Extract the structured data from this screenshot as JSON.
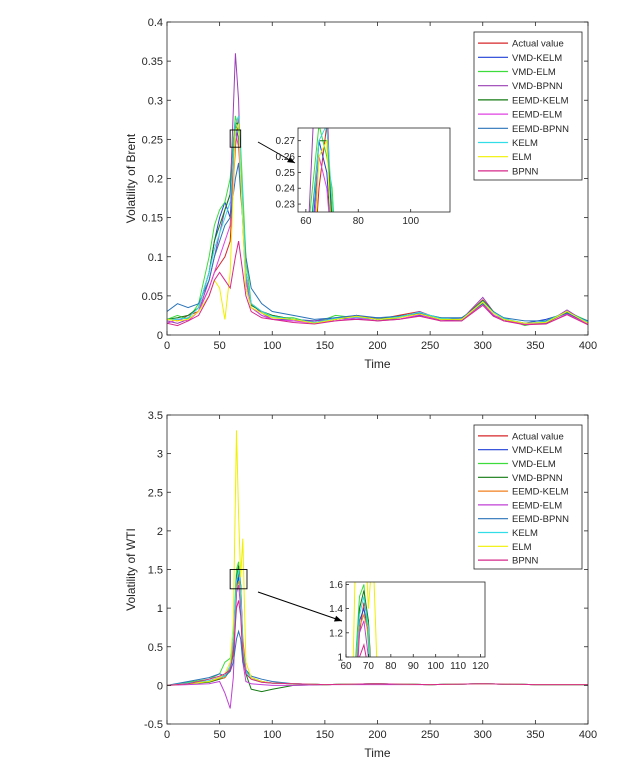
{
  "chart_data": [
    {
      "type": "line",
      "title": "",
      "xlabel": "Time",
      "ylabel": "Volatility of Brent",
      "xlim": [
        0,
        400
      ],
      "ylim": [
        0,
        0.4
      ],
      "xticks": [
        "0",
        "50",
        "100",
        "150",
        "200",
        "250",
        "300",
        "350",
        "400"
      ],
      "yticks": [
        "0",
        "0.05",
        "0.1",
        "0.15",
        "0.2",
        "0.25",
        "0.3",
        "0.35",
        "0.4"
      ],
      "grid": false,
      "legend_position": "top-right",
      "x": [
        0,
        10,
        20,
        30,
        40,
        45,
        50,
        55,
        60,
        65,
        68,
        70,
        75,
        80,
        90,
        100,
        120,
        140,
        160,
        180,
        200,
        220,
        240,
        260,
        280,
        300,
        310,
        320,
        340,
        360,
        380,
        400
      ],
      "series": [
        {
          "name": "Actual value",
          "color": "#d62728",
          "values": [
            0.02,
            0.018,
            0.025,
            0.03,
            0.06,
            0.08,
            0.09,
            0.1,
            0.12,
            0.24,
            0.28,
            0.22,
            0.08,
            0.04,
            0.03,
            0.025,
            0.02,
            0.015,
            0.02,
            0.025,
            0.02,
            0.025,
            0.03,
            0.02,
            0.02,
            0.045,
            0.03,
            0.02,
            0.015,
            0.015,
            0.03,
            0.015
          ]
        },
        {
          "name": "VMD-KELM",
          "color": "#1f3fd6",
          "values": [
            0.015,
            0.02,
            0.022,
            0.035,
            0.08,
            0.12,
            0.15,
            0.17,
            0.15,
            0.27,
            0.25,
            0.2,
            0.06,
            0.035,
            0.025,
            0.02,
            0.02,
            0.018,
            0.022,
            0.02,
            0.022,
            0.02,
            0.025,
            0.02,
            0.022,
            0.04,
            0.025,
            0.02,
            0.015,
            0.02,
            0.028,
            0.015
          ]
        },
        {
          "name": "VMD-ELM",
          "color": "#3ddc3d",
          "values": [
            0.02,
            0.025,
            0.02,
            0.04,
            0.1,
            0.14,
            0.16,
            0.17,
            0.2,
            0.28,
            0.26,
            0.24,
            0.1,
            0.04,
            0.03,
            0.022,
            0.022,
            0.015,
            0.025,
            0.022,
            0.018,
            0.022,
            0.028,
            0.022,
            0.018,
            0.042,
            0.028,
            0.022,
            0.012,
            0.018,
            0.03,
            0.018
          ]
        },
        {
          "name": "VMD-BPNN",
          "color": "#9a3fb5",
          "values": [
            0.018,
            0.015,
            0.02,
            0.03,
            0.07,
            0.1,
            0.13,
            0.16,
            0.18,
            0.36,
            0.3,
            0.2,
            0.07,
            0.04,
            0.028,
            0.02,
            0.018,
            0.018,
            0.02,
            0.025,
            0.02,
            0.022,
            0.03,
            0.018,
            0.02,
            0.048,
            0.03,
            0.018,
            0.015,
            0.015,
            0.032,
            0.015
          ]
        },
        {
          "name": "EEMD-KELM",
          "color": "#137a13",
          "values": [
            0.02,
            0.022,
            0.025,
            0.035,
            0.08,
            0.12,
            0.14,
            0.16,
            0.18,
            0.27,
            0.27,
            0.22,
            0.08,
            0.038,
            0.03,
            0.025,
            0.02,
            0.016,
            0.02,
            0.024,
            0.02,
            0.024,
            0.028,
            0.02,
            0.02,
            0.044,
            0.03,
            0.02,
            0.015,
            0.016,
            0.029,
            0.016
          ]
        },
        {
          "name": "EEMD-ELM",
          "color": "#e040e0",
          "values": [
            0.015,
            0.02,
            0.018,
            0.03,
            0.06,
            0.08,
            0.1,
            0.12,
            0.14,
            0.26,
            0.24,
            0.2,
            0.07,
            0.035,
            0.025,
            0.02,
            0.018,
            0.015,
            0.018,
            0.022,
            0.018,
            0.02,
            0.026,
            0.018,
            0.018,
            0.04,
            0.026,
            0.018,
            0.014,
            0.014,
            0.027,
            0.014
          ]
        },
        {
          "name": "EEMD-BPNN",
          "color": "#2a73b8",
          "values": [
            0.03,
            0.04,
            0.035,
            0.04,
            0.07,
            0.1,
            0.12,
            0.14,
            0.15,
            0.2,
            0.22,
            0.18,
            0.1,
            0.06,
            0.04,
            0.03,
            0.025,
            0.02,
            0.022,
            0.025,
            0.022,
            0.024,
            0.028,
            0.022,
            0.022,
            0.04,
            0.03,
            0.022,
            0.018,
            0.018,
            0.028,
            0.018
          ]
        },
        {
          "name": "KELM",
          "color": "#33dde8",
          "values": [
            0.02,
            0.02,
            0.022,
            0.035,
            0.08,
            0.11,
            0.13,
            0.15,
            0.17,
            0.27,
            0.28,
            0.23,
            0.08,
            0.04,
            0.03,
            0.024,
            0.02,
            0.016,
            0.021,
            0.023,
            0.02,
            0.023,
            0.029,
            0.021,
            0.02,
            0.043,
            0.029,
            0.021,
            0.015,
            0.017,
            0.03,
            0.016
          ]
        },
        {
          "name": "ELM",
          "color": "#f0f000",
          "values": [
            0.02,
            0.018,
            0.02,
            0.03,
            0.05,
            0.07,
            0.06,
            0.02,
            0.08,
            0.26,
            0.27,
            0.2,
            0.06,
            0.035,
            0.028,
            0.022,
            0.02,
            0.015,
            0.02,
            0.024,
            0.02,
            0.022,
            0.027,
            0.02,
            0.02,
            0.042,
            0.028,
            0.02,
            0.015,
            0.016,
            0.03,
            0.015
          ]
        },
        {
          "name": "BPNN",
          "color": "#d6288a",
          "values": [
            0.015,
            0.012,
            0.018,
            0.025,
            0.05,
            0.07,
            0.08,
            0.07,
            0.06,
            0.1,
            0.12,
            0.1,
            0.05,
            0.03,
            0.022,
            0.02,
            0.016,
            0.014,
            0.018,
            0.02,
            0.018,
            0.02,
            0.024,
            0.018,
            0.018,
            0.038,
            0.024,
            0.018,
            0.013,
            0.014,
            0.026,
            0.013
          ]
        }
      ],
      "inset": {
        "xlim": [
          57,
          115
        ],
        "ylim": [
          0.225,
          0.278
        ],
        "xticks": [
          "60",
          "80",
          "100"
        ],
        "yticks": [
          "0.23",
          "0.24",
          "0.25",
          "0.26",
          "0.27"
        ]
      }
    },
    {
      "type": "line",
      "title": "",
      "xlabel": "Time",
      "ylabel": "Volatility of WTI",
      "xlim": [
        0,
        400
      ],
      "ylim": [
        -0.5,
        3.5
      ],
      "xticks": [
        "0",
        "50",
        "100",
        "150",
        "200",
        "250",
        "300",
        "350",
        "400"
      ],
      "yticks": [
        "-0.5",
        "0",
        "0.5",
        "1",
        "1.5",
        "2",
        "2.5",
        "3",
        "3.5"
      ],
      "grid": false,
      "legend_position": "top-right",
      "x": [
        0,
        20,
        40,
        50,
        55,
        60,
        63,
        66,
        68,
        70,
        72,
        75,
        80,
        90,
        100,
        120,
        150,
        200,
        250,
        300,
        350,
        400
      ],
      "series": [
        {
          "name": "Actual value",
          "color": "#d62728",
          "values": [
            0,
            0.02,
            0.05,
            0.08,
            0.1,
            0.2,
            0.5,
            1.2,
            1.45,
            1.3,
            0.6,
            0.2,
            0.1,
            0.05,
            0.03,
            0.02,
            0.01,
            0.02,
            0.01,
            0.02,
            0.01,
            0.01
          ]
        },
        {
          "name": "VMD-KELM",
          "color": "#1f3fd6",
          "values": [
            0,
            0.03,
            0.06,
            0.1,
            0.12,
            0.25,
            0.6,
            1.3,
            1.4,
            1.2,
            0.5,
            0.18,
            0.1,
            0.05,
            0.03,
            0.02,
            0.01,
            0.02,
            0.01,
            0.02,
            0.01,
            0.01
          ]
        },
        {
          "name": "VMD-ELM",
          "color": "#3ddc3d",
          "values": [
            0,
            0.04,
            0.08,
            0.15,
            0.3,
            0.35,
            0.6,
            1.5,
            1.6,
            1.1,
            0.4,
            0.15,
            0.08,
            0.04,
            0.03,
            0.02,
            0.01,
            0.02,
            0.01,
            0.02,
            0.01,
            0.01
          ]
        },
        {
          "name": "VMD-BPNN",
          "color": "#137a13",
          "values": [
            0,
            0.02,
            0.04,
            0.08,
            0.1,
            0.2,
            0.5,
            1.4,
            1.55,
            1.3,
            0.5,
            0.15,
            -0.05,
            -0.08,
            -0.05,
            0,
            0.01,
            0.02,
            0.01,
            0.02,
            0.01,
            0.01
          ]
        },
        {
          "name": "EEMD-KELM",
          "color": "#f07f1f",
          "values": [
            0,
            0.02,
            0.05,
            0.09,
            0.1,
            0.22,
            0.55,
            1.25,
            1.35,
            1.2,
            0.55,
            0.2,
            0.1,
            0.05,
            0.03,
            0.02,
            0.01,
            0.02,
            0.01,
            0.02,
            0.01,
            0.01
          ]
        },
        {
          "name": "EEMD-ELM",
          "color": "#c040d6",
          "values": [
            0,
            0.01,
            0.02,
            0.05,
            -0.1,
            -0.3,
            0.1,
            1.2,
            1.3,
            1.0,
            0.3,
            0.05,
            0.02,
            0.01,
            0,
            0,
            0.01,
            0.01,
            0.01,
            0.02,
            0.01,
            0.01
          ]
        },
        {
          "name": "EEMD-BPNN",
          "color": "#2a73b8",
          "values": [
            0,
            0.05,
            0.1,
            0.15,
            0.12,
            0.18,
            0.3,
            0.6,
            0.7,
            0.6,
            0.3,
            0.2,
            0.12,
            0.08,
            0.05,
            0.02,
            0.01,
            0.02,
            0.01,
            0.02,
            0.01,
            0.01
          ]
        },
        {
          "name": "KELM",
          "color": "#33dde8",
          "values": [
            0,
            0.03,
            0.06,
            0.1,
            0.12,
            0.25,
            0.6,
            1.35,
            1.5,
            1.25,
            0.5,
            0.18,
            0.1,
            0.05,
            0.03,
            0.02,
            0.01,
            0.02,
            0.01,
            0.02,
            0.01,
            0.01
          ]
        },
        {
          "name": "ELM",
          "color": "#f0f000",
          "values": [
            0,
            0.02,
            0.05,
            0.1,
            0.15,
            0.3,
            0.8,
            3.3,
            2.2,
            1.4,
            1.9,
            0.3,
            0.1,
            0.05,
            0.03,
            0.02,
            0.01,
            0.02,
            0.01,
            0.02,
            0.01,
            0.01
          ]
        },
        {
          "name": "BPNN",
          "color": "#d6288a",
          "values": [
            0,
            0.02,
            0.08,
            0.12,
            0.15,
            0.2,
            0.4,
            1.0,
            1.1,
            0.9,
            0.4,
            0.15,
            0.08,
            0.04,
            0.03,
            0.02,
            0.01,
            0.02,
            0.01,
            0.02,
            0.01,
            0.01
          ]
        }
      ],
      "inset": {
        "xlim": [
          60,
          122
        ],
        "ylim": [
          1.0,
          1.62
        ],
        "xticks": [
          "60",
          "70",
          "80",
          "90",
          "100",
          "110",
          "120"
        ],
        "yticks": [
          "1",
          "1.2",
          "1.4",
          "1.6"
        ]
      }
    }
  ]
}
